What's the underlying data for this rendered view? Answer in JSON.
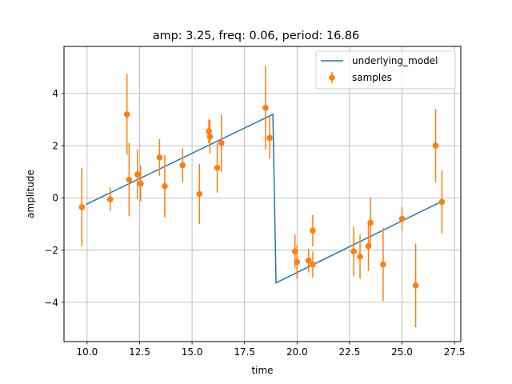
{
  "chart_data": {
    "type": "scatter",
    "title": "amp: 3.25, freq: 0.06, period: 16.86",
    "xlabel": "time",
    "ylabel": "amplitude",
    "xlim": [
      8.9,
      27.8
    ],
    "ylim": [
      -5.5,
      5.8
    ],
    "xticks": [
      10.0,
      12.5,
      15.0,
      17.5,
      20.0,
      22.5,
      25.0,
      27.5
    ],
    "xtick_labels": [
      "10.0",
      "12.5",
      "15.0",
      "17.5",
      "20.0",
      "22.5",
      "25.0",
      "27.5"
    ],
    "yticks": [
      -4,
      -2,
      0,
      2,
      4
    ],
    "ytick_labels": [
      "−4",
      "−2",
      "0",
      "2",
      "4"
    ],
    "grid": true,
    "legend_position": "upper right",
    "series": [
      {
        "name": "underlying_model",
        "kind": "line",
        "color": "#1f77b4",
        "x": [
          9.95,
          18.85,
          19.0,
          26.85
        ],
        "y": [
          -0.25,
          3.2,
          -3.25,
          -0.15
        ]
      },
      {
        "name": "samples",
        "kind": "errorbar",
        "color": "#ff7f0e",
        "points": [
          {
            "x": 9.75,
            "y": -0.35,
            "err": 1.5
          },
          {
            "x": 11.1,
            "y": -0.05,
            "err": 0.45
          },
          {
            "x": 11.9,
            "y": 3.2,
            "err": 1.55
          },
          {
            "x": 12.0,
            "y": 0.7,
            "err": 1.4
          },
          {
            "x": 12.4,
            "y": 0.9,
            "err": 0.95
          },
          {
            "x": 12.55,
            "y": 0.55,
            "err": 0.7
          },
          {
            "x": 13.45,
            "y": 1.55,
            "err": 0.7
          },
          {
            "x": 13.7,
            "y": 0.45,
            "err": 1.2
          },
          {
            "x": 14.55,
            "y": 1.25,
            "err": 0.65
          },
          {
            "x": 15.35,
            "y": 0.15,
            "err": 1.15
          },
          {
            "x": 15.8,
            "y": 2.55,
            "err": 0.45
          },
          {
            "x": 15.85,
            "y": 2.35,
            "err": 0.65
          },
          {
            "x": 16.2,
            "y": 1.15,
            "err": 0.95
          },
          {
            "x": 16.4,
            "y": 2.1,
            "err": 1.1
          },
          {
            "x": 18.5,
            "y": 3.45,
            "err": 1.6
          },
          {
            "x": 18.7,
            "y": 2.3,
            "err": 0.8
          },
          {
            "x": 19.9,
            "y": -2.05,
            "err": 0.65
          },
          {
            "x": 20.0,
            "y": -2.45,
            "err": 0.65
          },
          {
            "x": 20.55,
            "y": -2.4,
            "err": 0.45
          },
          {
            "x": 20.75,
            "y": -2.55,
            "err": 0.5
          },
          {
            "x": 20.75,
            "y": -1.25,
            "err": 0.6
          },
          {
            "x": 22.7,
            "y": -2.05,
            "err": 0.95
          },
          {
            "x": 23.0,
            "y": -2.25,
            "err": 0.85
          },
          {
            "x": 23.4,
            "y": -1.85,
            "err": 0.95
          },
          {
            "x": 23.5,
            "y": -0.95,
            "err": 0.95
          },
          {
            "x": 24.1,
            "y": -2.55,
            "err": 1.4
          },
          {
            "x": 25.0,
            "y": -0.8,
            "err": 0.45
          },
          {
            "x": 25.65,
            "y": -3.35,
            "err": 1.6
          },
          {
            "x": 26.6,
            "y": 2.0,
            "err": 1.4
          },
          {
            "x": 26.9,
            "y": -0.15,
            "err": 1.2
          }
        ]
      }
    ]
  }
}
